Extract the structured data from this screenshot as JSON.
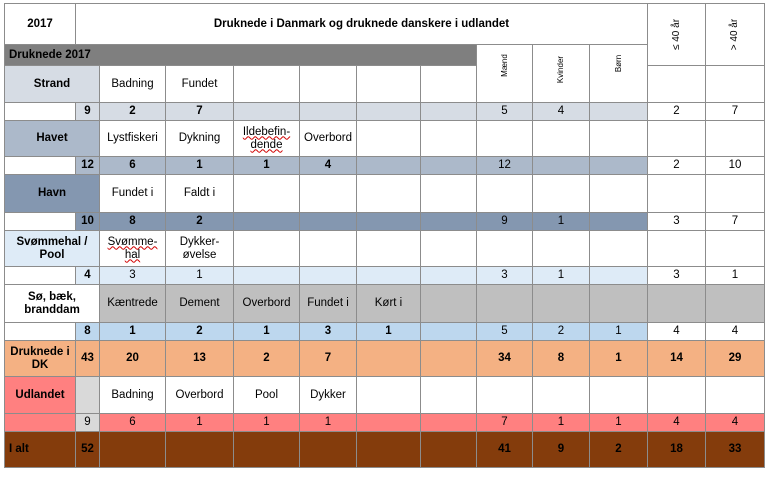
{
  "header": {
    "year": "2017",
    "title": "Druknede i Danmark og druknede danskere i udlandet",
    "age_under": "≤ 40 år",
    "age_over": "> 40 år"
  },
  "banner": "Druknede 2017",
  "gender_headers": {
    "men": "Mænd",
    "women": "Kvinder",
    "children": "Børn"
  },
  "strand": {
    "label": "Strand",
    "sub": [
      "Badning",
      "Fundet"
    ],
    "total": "9",
    "vals": [
      "2",
      "7"
    ],
    "men": "5",
    "women": "4",
    "children": "",
    "under40": "2",
    "over40": "7"
  },
  "havet": {
    "label": "Havet",
    "sub": [
      "Lystfiskeri",
      "Dykning",
      "Ildebefin-dende",
      "Overbord"
    ],
    "total": "12",
    "vals": [
      "6",
      "1",
      "1",
      "4"
    ],
    "men": "12",
    "women": "",
    "children": "",
    "under40": "2",
    "over40": "10"
  },
  "havn": {
    "label": "Havn",
    "sub": [
      "Fundet i",
      "Faldt i"
    ],
    "total": "10",
    "vals": [
      "8",
      "2"
    ],
    "men": "9",
    "women": "1",
    "children": "",
    "under40": "3",
    "over40": "7"
  },
  "pool": {
    "label": "Svømmehal / Pool",
    "sub": [
      "Svømme-hal",
      "Dykker-øvelse"
    ],
    "total": "4",
    "vals": [
      "3",
      "1"
    ],
    "men": "3",
    "women": "1",
    "children": "",
    "under40": "3",
    "over40": "1"
  },
  "so": {
    "label": "Sø, bæk, branddam",
    "sub": [
      "Kæntrede",
      "Dement",
      "Overbord",
      "Fundet i",
      "Kørt i"
    ],
    "total": "8",
    "vals": [
      "1",
      "2",
      "1",
      "3",
      "1"
    ],
    "men": "5",
    "women": "2",
    "children": "1",
    "under40": "4",
    "over40": "4"
  },
  "dk": {
    "label": "Druknede i DK",
    "total": "43",
    "vals": [
      "20",
      "13",
      "2",
      "7"
    ],
    "men": "34",
    "women": "8",
    "children": "1",
    "under40": "14",
    "over40": "29"
  },
  "udlandet": {
    "label": "Udlandet",
    "sub": [
      "Badning",
      "Overbord",
      "Pool",
      "Dykker"
    ],
    "total": "9",
    "vals": [
      "6",
      "1",
      "1",
      "1"
    ],
    "men": "7",
    "women": "1",
    "children": "1",
    "under40": "4",
    "over40": "4"
  },
  "ialt": {
    "label": "I alt",
    "total": "52",
    "men": "41",
    "women": "9",
    "children": "2",
    "under40": "18",
    "over40": "33"
  },
  "colors": {
    "title": "#1f3864",
    "banner": "#7f7f7f",
    "strand": "#d6dce4",
    "havet": "#acb9ca",
    "havn": "#8497b0",
    "pool": "#deebf7",
    "so": "#bdd7ee",
    "dk": "#f4b183",
    "udlandet": "#ff8080",
    "ialt": "#843c0c"
  }
}
